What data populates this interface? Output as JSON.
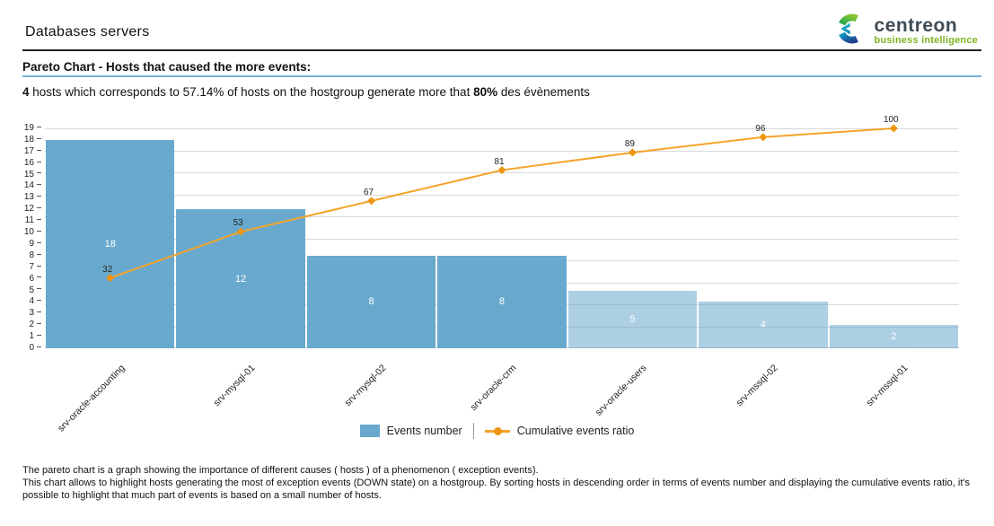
{
  "header": {
    "title": "Databases servers",
    "logo": {
      "name": "centreon",
      "tagline": "business intelligence",
      "name_color": "#3e4b54",
      "tagline_color": "#7cb524"
    }
  },
  "section": {
    "title": "Pareto Chart - Hosts that caused the more events:"
  },
  "description": {
    "bold1": "4",
    "text1": " hosts which corresponds to 57.14% of hosts on the hostgroup generate more that ",
    "bold2": "80%",
    "text2": " des évènements"
  },
  "chart_data": {
    "type": "bar",
    "subtype": "pareto (bar + cumulative line)",
    "categories": [
      "srv-oracle-accounting",
      "srv-mysql-01",
      "srv-mysql-02",
      "srv-oracle-crm",
      "srv-oracle-users",
      "srv-mssql-02",
      "srv-mssql-01"
    ],
    "series": [
      {
        "name": "Events number",
        "type": "bar",
        "values": [
          18,
          12,
          8,
          8,
          5,
          4,
          2
        ],
        "color": "#69a9cd",
        "muted_from_index": 4
      },
      {
        "name": "Cumulative events ratio",
        "type": "line",
        "values": [
          32,
          53,
          67,
          81,
          89,
          96,
          100
        ],
        "color": "#f4a428",
        "marker_color": "#ef9511"
      }
    ],
    "title": "",
    "xlabel": "",
    "ylabel": "",
    "y_axis": {
      "min": 0,
      "max": 19,
      "tick_step": 1
    },
    "secondary_axis": {
      "min": 0,
      "max": 100,
      "gridline_step_percent": 10
    },
    "grid": true,
    "legend_position": "bottom-center"
  },
  "footer": {
    "lines": [
      "The pareto chart is a graph showing the importance of different causes ( hosts ) of a phenomenon ( exception events).",
      "This chart allows to highlight hosts generating the most of exception events (DOWN state) on a hostgroup. By sorting hosts in descending order in terms of events number and displaying the cumulative events ratio, it's",
      "possible to highlight that much part of events is based on a small number of hosts."
    ]
  }
}
